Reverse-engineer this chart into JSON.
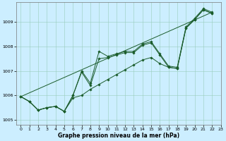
{
  "xlabel": "Graphe pression niveau de la mer (hPa)",
  "bg_color": "#cceeff",
  "grid_color": "#99ccbb",
  "line_color": "#1a5c2a",
  "xlim": [
    -0.5,
    23
  ],
  "ylim": [
    1004.8,
    1009.8
  ],
  "xtick_labels": [
    "0",
    "1",
    "2",
    "3",
    "4",
    "5",
    "6",
    "7",
    "8",
    "9",
    "10",
    "11",
    "12",
    "13",
    "14",
    "15",
    "16",
    "17",
    "18",
    "19",
    "20",
    "21",
    "22",
    "23"
  ],
  "xticks": [
    0,
    1,
    2,
    3,
    4,
    5,
    6,
    7,
    8,
    9,
    10,
    11,
    12,
    13,
    14,
    15,
    16,
    17,
    18,
    19,
    20,
    21,
    22,
    23
  ],
  "yticks": [
    1005,
    1006,
    1007,
    1008,
    1009
  ],
  "series1_x": [
    0,
    1,
    2,
    3,
    4,
    5,
    6,
    7,
    8,
    9,
    10,
    11,
    12,
    13,
    14,
    15,
    16,
    17,
    18,
    19,
    20,
    21,
    22
  ],
  "series1_y": [
    1005.95,
    1005.75,
    1005.4,
    1005.5,
    1005.55,
    1005.35,
    1006.0,
    1007.0,
    1006.5,
    1007.8,
    1007.6,
    1007.7,
    1007.8,
    1007.8,
    1008.1,
    1008.2,
    1007.7,
    1007.2,
    1007.15,
    1008.8,
    1009.15,
    1009.55,
    1009.4
  ],
  "series2_x": [
    0,
    1,
    2,
    3,
    4,
    5,
    6,
    7,
    8,
    9,
    10,
    11,
    12,
    13,
    14,
    15,
    16,
    17,
    18,
    19,
    20,
    21,
    22
  ],
  "series2_y": [
    1005.95,
    1005.75,
    1005.4,
    1005.5,
    1005.55,
    1005.35,
    1006.0,
    1006.95,
    1006.4,
    1007.5,
    1007.55,
    1007.65,
    1007.75,
    1007.75,
    1008.05,
    1008.15,
    1007.65,
    1007.15,
    1007.1,
    1008.75,
    1009.1,
    1009.5,
    1009.35
  ],
  "series3_x": [
    0,
    1,
    2,
    3,
    4,
    5,
    6,
    7,
    8,
    9,
    10,
    11,
    12,
    13,
    14,
    15,
    16,
    17,
    18,
    19,
    20,
    21,
    22
  ],
  "series3_y": [
    1005.95,
    1005.75,
    1005.4,
    1005.5,
    1005.55,
    1005.35,
    1005.9,
    1006.0,
    1006.25,
    1006.45,
    1006.65,
    1006.85,
    1007.05,
    1007.25,
    1007.45,
    1007.55,
    1007.3,
    1007.15,
    1007.1,
    1008.75,
    1009.1,
    1009.5,
    1009.35
  ],
  "trend_x": [
    0,
    22
  ],
  "trend_y": [
    1005.95,
    1009.4
  ]
}
